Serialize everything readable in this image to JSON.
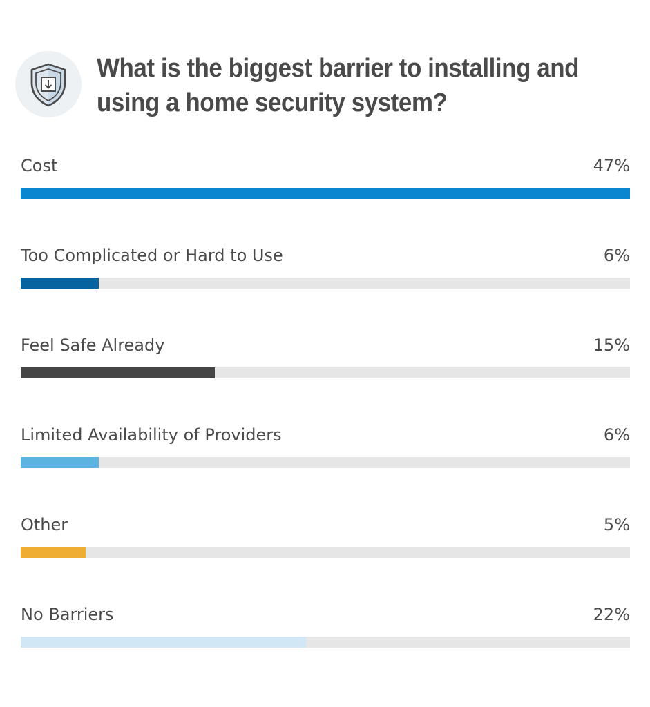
{
  "header": {
    "icon": "shield-download-icon",
    "title_line1": "What is the biggest barrier to installing and",
    "title_line2": "using a home security system?"
  },
  "chart_data": {
    "type": "bar",
    "orientation": "horizontal",
    "title": "What is the biggest barrier to installing and using a home security system?",
    "categories": [
      "Cost",
      "Too Complicated or Hard to Use",
      "Feel Safe Already",
      "Limited Availability of Providers",
      "Other",
      "No Barriers"
    ],
    "values": [
      47,
      6,
      15,
      6,
      5,
      22
    ],
    "value_labels": [
      "47%",
      "6%",
      "15%",
      "6%",
      "5%",
      "22%"
    ],
    "unit": "%",
    "xlim": [
      0,
      47
    ],
    "colors": [
      "#0a86d0",
      "#06639f",
      "#454545",
      "#5db3e0",
      "#f0ad34",
      "#d1e7f5"
    ],
    "track_color": "#e6e6e6",
    "grid": false,
    "legend": "none"
  }
}
